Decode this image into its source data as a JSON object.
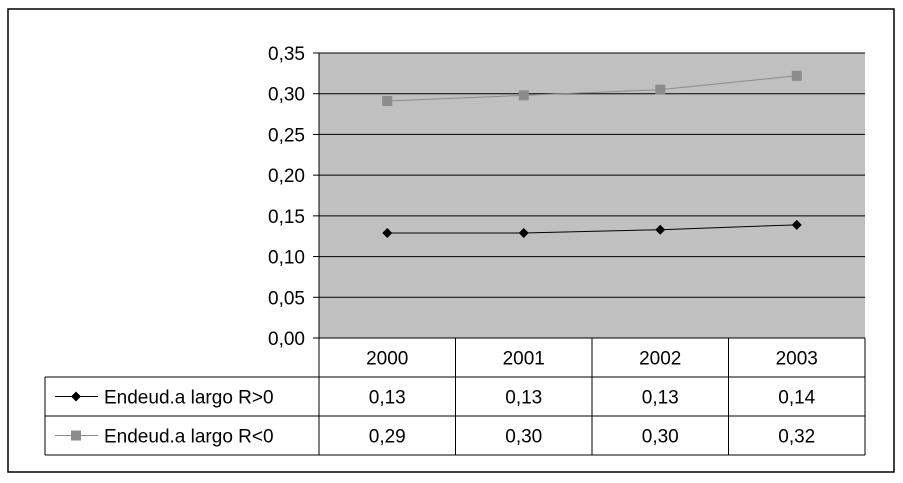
{
  "chart_data": {
    "type": "line",
    "categories": [
      "2000",
      "2001",
      "2002",
      "2003"
    ],
    "series": [
      {
        "name": "Endeud.a largo R>0",
        "values": [
          0.13,
          0.13,
          0.13,
          0.14
        ],
        "plot_values": [
          0.129,
          0.129,
          0.133,
          0.139
        ],
        "marker": "diamond",
        "color": "#000000"
      },
      {
        "name": "Endeud.a largo R<0",
        "values": [
          0.29,
          0.3,
          0.3,
          0.32
        ],
        "plot_values": [
          0.291,
          0.298,
          0.305,
          0.322
        ],
        "marker": "square",
        "color": "#8c8c8c"
      }
    ],
    "ylim": [
      0,
      0.35
    ],
    "yticks": [
      "0,00",
      "0,05",
      "0,10",
      "0,15",
      "0,20",
      "0,25",
      "0,30",
      "0,35"
    ],
    "table_labels": [
      [
        "0,13",
        "0,13",
        "0,13",
        "0,14"
      ],
      [
        "0,29",
        "0,30",
        "0,30",
        "0,32"
      ]
    ],
    "grid": true,
    "plot_background": "#c0c0c0",
    "legend": "data-table"
  }
}
